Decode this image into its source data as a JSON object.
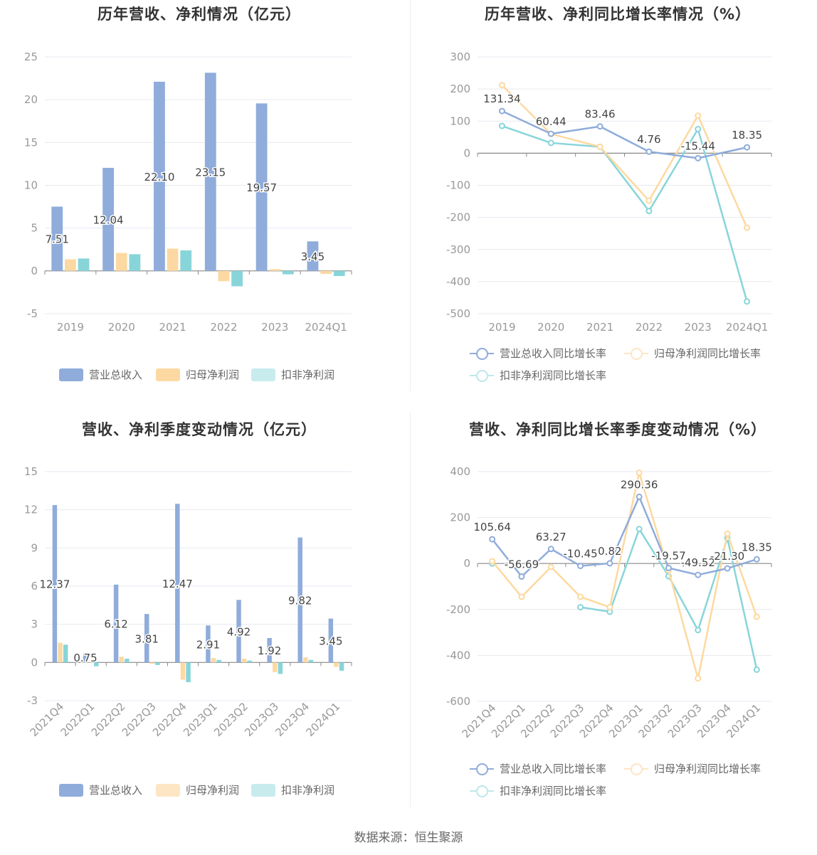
{
  "colors": {
    "revenue": "#8facdb",
    "parent_profit": "#fcd9a2",
    "deducted_profit": "#88d5d9",
    "axis_text": "#999999",
    "grid": "#e6e9f0",
    "label": "#444444"
  },
  "source_text": "数据来源：恒生聚源",
  "legends": {
    "bar": [
      "营业总收入",
      "归母净利润",
      "扣非净利润"
    ],
    "line": [
      "营业总收入同比增长率",
      "归母净利润同比增长率",
      "扣非净利润同比增长率"
    ]
  },
  "chart_data": [
    {
      "id": "annual_amount",
      "type": "bar",
      "title": "历年营收、净利情况（亿元）",
      "categories": [
        "2019",
        "2020",
        "2021",
        "2022",
        "2023",
        "2024Q1"
      ],
      "ylim": [
        -5,
        25
      ],
      "yticks": [
        -5,
        0,
        5,
        10,
        15,
        20,
        25
      ],
      "series": [
        {
          "name": "营业总收入",
          "values": [
            7.51,
            12.04,
            22.1,
            23.15,
            19.57,
            3.45
          ]
        },
        {
          "name": "归母净利润",
          "values": [
            1.35,
            2.1,
            2.6,
            -1.2,
            0.2,
            -0.35
          ]
        },
        {
          "name": "扣非净利润",
          "values": [
            1.45,
            1.95,
            2.4,
            -1.8,
            -0.4,
            -0.6
          ]
        }
      ],
      "data_labels": [
        "7.51",
        "12.04",
        "22.10",
        "23.15",
        "19.57",
        "3.45"
      ]
    },
    {
      "id": "annual_growth",
      "type": "line",
      "title": "历年营收、净利同比增长率情况（%）",
      "categories": [
        "2019",
        "2020",
        "2021",
        "2022",
        "2023",
        "2024Q1"
      ],
      "ylim": [
        -500,
        300
      ],
      "yticks": [
        -500,
        -400,
        -300,
        -200,
        -100,
        0,
        100,
        200,
        300
      ],
      "series": [
        {
          "name": "营业总收入同比增长率",
          "values": [
            131.34,
            60.44,
            83.46,
            4.76,
            -15.44,
            18.35
          ]
        },
        {
          "name": "归母净利润同比增长率",
          "values": [
            212,
            60,
            20,
            -148,
            117,
            -232
          ]
        },
        {
          "name": "扣非净利润同比增长率",
          "values": [
            85,
            32,
            20,
            -180,
            75,
            -462
          ]
        }
      ],
      "data_labels": [
        "131.34",
        "60.44",
        "83.46",
        "4.76",
        "-15.44",
        "18.35"
      ]
    },
    {
      "id": "quarterly_amount",
      "type": "bar",
      "title": "营收、净利季度变动情况（亿元）",
      "categories": [
        "2021Q4",
        "2022Q1",
        "2022Q2",
        "2022Q3",
        "2022Q4",
        "2023Q1",
        "2023Q2",
        "2023Q3",
        "2023Q4",
        "2024Q1"
      ],
      "ylim": [
        -3,
        15
      ],
      "yticks": [
        -3,
        0,
        3,
        6,
        9,
        12,
        15
      ],
      "series": [
        {
          "name": "营业总收入",
          "values": [
            12.37,
            0.75,
            6.12,
            3.81,
            12.47,
            2.91,
            4.92,
            1.92,
            9.82,
            3.45
          ]
        },
        {
          "name": "归母净利润",
          "values": [
            1.55,
            0.05,
            0.45,
            -0.1,
            -1.35,
            0.35,
            0.3,
            -0.75,
            0.4,
            -0.35
          ]
        },
        {
          "name": "扣非净利润",
          "values": [
            1.4,
            -0.3,
            0.3,
            -0.2,
            -1.55,
            0.2,
            0.15,
            -0.9,
            0.2,
            -0.65
          ]
        }
      ],
      "data_labels": [
        "12.37",
        "0.75",
        "6.12",
        "3.81",
        "12.47",
        "2.91",
        "4.92",
        "1.92",
        "9.82",
        "3.45"
      ]
    },
    {
      "id": "quarterly_growth",
      "type": "line",
      "title": "营收、净利同比增长率季度变动情况（%）",
      "categories": [
        "2021Q4",
        "2022Q1",
        "2022Q2",
        "2022Q3",
        "2022Q4",
        "2023Q1",
        "2023Q2",
        "2023Q3",
        "2023Q4",
        "2024Q1"
      ],
      "ylim": [
        -600,
        400
      ],
      "yticks": [
        -600,
        -400,
        -200,
        0,
        200,
        400
      ],
      "series": [
        {
          "name": "营业总收入同比增长率",
          "values": [
            105.64,
            -56.69,
            63.27,
            -10.45,
            0.82,
            290.36,
            -19.57,
            -49.52,
            -21.3,
            18.35
          ]
        },
        {
          "name": "归母净利润同比增长率",
          "values": [
            10,
            -145,
            -15,
            -145,
            -190,
            395,
            -30,
            -500,
            130,
            -232
          ]
        },
        {
          "name": "扣非净利润同比增长率",
          "values": [
            0,
            null,
            null,
            -190,
            -210,
            150,
            -55,
            -290,
            110,
            -462
          ]
        }
      ],
      "data_labels": [
        "105.64",
        "-56.69",
        "63.27",
        "-10.45",
        "0.82",
        "290.36",
        "-19.57",
        "-49.52",
        "-21.30",
        "18.35"
      ]
    }
  ]
}
